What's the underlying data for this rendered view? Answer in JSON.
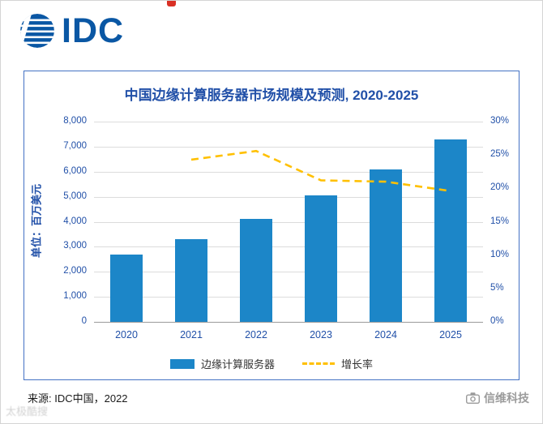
{
  "logo": {
    "text": "IDC"
  },
  "chart_data": {
    "type": "bar",
    "title": "中国边缘计算服务器市场规模及预测, 2020-2025",
    "categories": [
      "2020",
      "2021",
      "2022",
      "2023",
      "2024",
      "2025"
    ],
    "series": [
      {
        "name": "边缘计算服务器",
        "type": "bar",
        "axis": "left",
        "values": [
          2700,
          3300,
          4100,
          5050,
          6100,
          7300
        ],
        "color": "#1c86c8"
      },
      {
        "name": "增长率",
        "type": "line",
        "style": "dashed",
        "axis": "right",
        "values": [
          null,
          24.3,
          25.6,
          21.2,
          21.0,
          19.6
        ],
        "color": "#ffc000"
      }
    ],
    "ylabel_left": "单位：百万美元",
    "left_axis": {
      "min": 0,
      "max": 8000,
      "step": 1000,
      "tick_labels": [
        "0",
        "1,000",
        "2,000",
        "3,000",
        "4,000",
        "5,000",
        "6,000",
        "7,000",
        "8,000"
      ]
    },
    "right_axis": {
      "min": 0,
      "max": 30,
      "step": 5,
      "tick_labels": [
        "0%",
        "5%",
        "10%",
        "15%",
        "20%",
        "25%",
        "30%"
      ]
    },
    "grid": true,
    "legend_position": "bottom"
  },
  "footer": {
    "source": "来源: IDC中国，2022"
  },
  "watermarks": {
    "left": "太极酷搜",
    "right": "信维科技"
  },
  "icons": {
    "logo_globe": "globe-icon",
    "watermark_camera": "camera-icon"
  },
  "colors": {
    "logo_blue": "#0a57a4",
    "text_blue": "#2150a8",
    "box_border_blue": "#4472c4",
    "bar_blue": "#1c86c8",
    "line_yellow": "#ffc000",
    "red_mark": "#d93025"
  }
}
